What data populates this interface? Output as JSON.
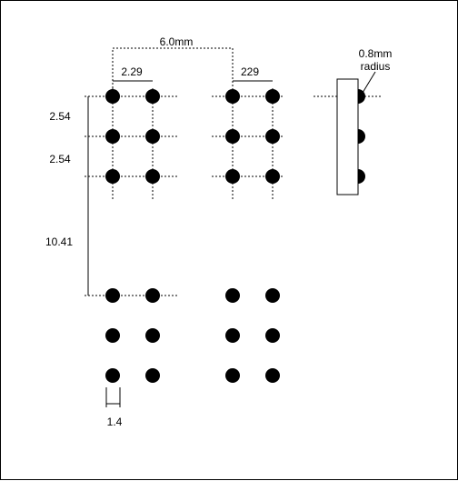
{
  "diagram": {
    "labels": {
      "top_span": "6.0mm",
      "left_pitch": "2.29",
      "right_pitch": "229",
      "row_pitch_1": "2.54",
      "row_pitch_2": "2.54",
      "group_gap": "10.41",
      "dot_size": "1.4",
      "radius_line1": "0.8mm",
      "radius_line2": "radius"
    },
    "colors": {
      "ink": "#000000",
      "background": "#ffffff"
    }
  }
}
